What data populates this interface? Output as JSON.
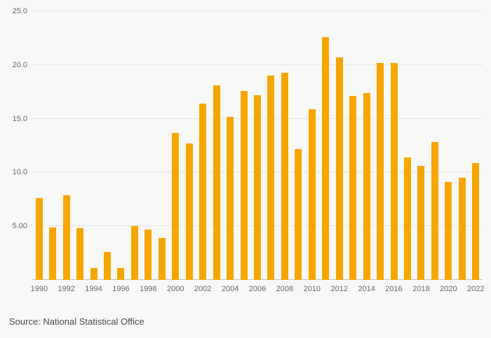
{
  "footer": {
    "source": "Source: National Statistical Office"
  },
  "colors": {
    "bar": "#F7A600",
    "background": "#f8f8f7",
    "gridline": "#e5e5e3",
    "baseline": "#c2c2c0",
    "tick_text": "#676767",
    "source_text": "#4a4a4a"
  },
  "chart_data": {
    "type": "bar",
    "title": "",
    "xlabel": "",
    "ylabel": "",
    "ylim": [
      0,
      25
    ],
    "grid": true,
    "legend": "none",
    "bar_color": "#F7A600",
    "categories": [
      1990,
      1991,
      1992,
      1993,
      1994,
      1995,
      1996,
      1997,
      1998,
      1999,
      2000,
      2001,
      2002,
      2003,
      2004,
      2005,
      2006,
      2007,
      2008,
      2009,
      2010,
      2011,
      2012,
      2013,
      2014,
      2015,
      2016,
      2017,
      2018,
      2019,
      2020,
      2021,
      2022
    ],
    "values": [
      7.6,
      4.9,
      7.9,
      4.8,
      1.1,
      2.6,
      1.1,
      5.0,
      4.7,
      3.9,
      13.7,
      12.7,
      16.4,
      18.1,
      15.2,
      17.6,
      17.2,
      19.0,
      19.3,
      12.2,
      15.9,
      22.6,
      20.7,
      17.1,
      17.4,
      20.2,
      20.2,
      11.4,
      10.6,
      12.8,
      9.1,
      9.5,
      10.9
    ],
    "yticks": [
      {
        "value": 5,
        "label": "5.00"
      },
      {
        "value": 10,
        "label": "10.0"
      },
      {
        "value": 15,
        "label": "15.0"
      },
      {
        "value": 20,
        "label": "20.0"
      },
      {
        "value": 25,
        "label": "25.0"
      }
    ],
    "xtick_labels": [
      "1990",
      "1992",
      "1994",
      "1996",
      "1998",
      "2000",
      "2002",
      "2004",
      "2006",
      "2008",
      "2010",
      "2012",
      "2014",
      "2016",
      "2018",
      "2020",
      "2022"
    ]
  }
}
